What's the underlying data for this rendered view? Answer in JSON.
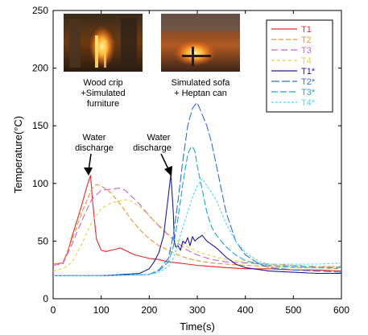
{
  "chart_data": {
    "type": "line",
    "xlabel": "Time(s)",
    "ylabel": "Temperature(°C)",
    "xlim": [
      0,
      600
    ],
    "ylim": [
      0,
      250
    ],
    "xticks": [
      0,
      100,
      200,
      300,
      400,
      500,
      600
    ],
    "yticks": [
      0,
      50,
      100,
      150,
      200,
      250
    ],
    "grid": false,
    "legend_position": "top-right",
    "photo_captions": [
      {
        "line1": "Wood crip",
        "line2": "+Simulated",
        "line3": "furniture"
      },
      {
        "line1": "Simulated sofa",
        "line2": "+ Heptan can"
      }
    ],
    "annotations": [
      {
        "line1": "Water",
        "line2": "discharge",
        "points_to": [
          78,
          107
        ]
      },
      {
        "line1": "Water",
        "line2": "discharge",
        "points_to": [
          245,
          108
        ]
      }
    ],
    "series": [
      {
        "name": "T1",
        "color": "#e8262a",
        "dash": "solid",
        "x": [
          0,
          20,
          30,
          40,
          50,
          60,
          70,
          78,
          82,
          90,
          100,
          110,
          120,
          130,
          140,
          150,
          160,
          170,
          180,
          190,
          200,
          220,
          240,
          260,
          280,
          300,
          330,
          360,
          400,
          450,
          500,
          550,
          600
        ],
        "y": [
          30,
          31,
          40,
          55,
          68,
          82,
          97,
          107,
          85,
          52,
          42,
          41,
          42,
          43,
          44,
          42,
          40,
          38,
          37,
          36,
          35,
          34,
          32,
          31,
          30,
          29,
          28,
          27,
          26,
          26,
          25,
          25,
          24
        ]
      },
      {
        "name": "T2",
        "color": "#f0922a",
        "dash": "6,3",
        "x": [
          0,
          20,
          40,
          60,
          80,
          90,
          100,
          120,
          140,
          160,
          180,
          200,
          220,
          240,
          260,
          280,
          300,
          330,
          360,
          400,
          450,
          500,
          550,
          600
        ],
        "y": [
          30,
          31,
          52,
          75,
          95,
          99,
          98,
          92,
          82,
          70,
          60,
          52,
          46,
          42,
          38,
          35,
          33,
          31,
          30,
          29,
          28,
          27,
          27,
          26
        ]
      },
      {
        "name": "T3",
        "color": "#d060d0",
        "dash": "8,4",
        "x": [
          0,
          20,
          40,
          60,
          80,
          100,
          120,
          140,
          150,
          160,
          180,
          200,
          220,
          240,
          260,
          280,
          300,
          330,
          360,
          400,
          450,
          500,
          550,
          600
        ],
        "y": [
          29,
          30,
          48,
          68,
          86,
          94,
          95,
          96,
          94,
          90,
          82,
          72,
          63,
          55,
          48,
          42,
          38,
          34,
          32,
          31,
          30,
          29,
          28,
          28
        ]
      },
      {
        "name": "T4",
        "color": "#e8d040",
        "dash": "4,3",
        "x": [
          0,
          20,
          40,
          60,
          80,
          100,
          120,
          140,
          150,
          160,
          180,
          200,
          220,
          240,
          260,
          280,
          300,
          330,
          360,
          400,
          450,
          500,
          550,
          600
        ],
        "y": [
          24,
          26,
          32,
          48,
          66,
          78,
          83,
          85,
          86,
          85,
          80,
          72,
          64,
          56,
          50,
          45,
          41,
          37,
          34,
          32,
          30,
          29,
          28,
          28
        ]
      },
      {
        "name": "T1*",
        "color": "#1a1aa0",
        "dash": "solid",
        "x": [
          0,
          100,
          180,
          200,
          210,
          220,
          230,
          240,
          245,
          250,
          252,
          255,
          260,
          265,
          270,
          275,
          280,
          285,
          290,
          295,
          300,
          310,
          320,
          330,
          340,
          350,
          360,
          370,
          380,
          400,
          450,
          500,
          550,
          600
        ],
        "y": [
          20,
          20,
          22,
          26,
          32,
          40,
          55,
          90,
          108,
          75,
          50,
          45,
          46,
          42,
          50,
          48,
          53,
          46,
          54,
          50,
          52,
          55,
          50,
          47,
          44,
          40,
          36,
          33,
          30,
          27,
          24,
          23,
          22,
          22
        ]
      },
      {
        "name": "T2*",
        "color": "#2f6fe0",
        "dash": "10,3",
        "x": [
          0,
          100,
          200,
          220,
          240,
          250,
          260,
          270,
          280,
          290,
          295,
          300,
          305,
          310,
          320,
          330,
          340,
          350,
          360,
          380,
          400,
          430,
          450,
          500,
          550,
          600
        ],
        "y": [
          20,
          20,
          21,
          25,
          35,
          55,
          85,
          120,
          150,
          165,
          168,
          170,
          165,
          160,
          150,
          135,
          115,
          95,
          75,
          50,
          38,
          30,
          27,
          25,
          24,
          23
        ]
      },
      {
        "name": "T3*",
        "color": "#18a8c8",
        "dash": "8,3",
        "x": [
          0,
          100,
          200,
          220,
          240,
          250,
          260,
          270,
          280,
          285,
          290,
          295,
          300,
          310,
          320,
          330,
          340,
          360,
          380,
          400,
          430,
          450,
          500,
          550,
          600
        ],
        "y": [
          20,
          20,
          21,
          24,
          32,
          45,
          70,
          100,
          125,
          130,
          132,
          128,
          115,
          95,
          75,
          62,
          55,
          45,
          38,
          33,
          30,
          29,
          28,
          27,
          27
        ]
      },
      {
        "name": "T4*",
        "color": "#50d8f0",
        "dash": "3,2",
        "x": [
          0,
          100,
          200,
          220,
          240,
          250,
          260,
          270,
          280,
          290,
          300,
          310,
          320,
          330,
          340,
          350,
          360,
          380,
          400,
          430,
          450,
          500,
          550,
          600
        ],
        "y": [
          20,
          20,
          21,
          23,
          28,
          35,
          48,
          62,
          75,
          88,
          98,
          104,
          98,
          92,
          85,
          75,
          65,
          50,
          40,
          32,
          30,
          30,
          30,
          31
        ]
      }
    ]
  }
}
